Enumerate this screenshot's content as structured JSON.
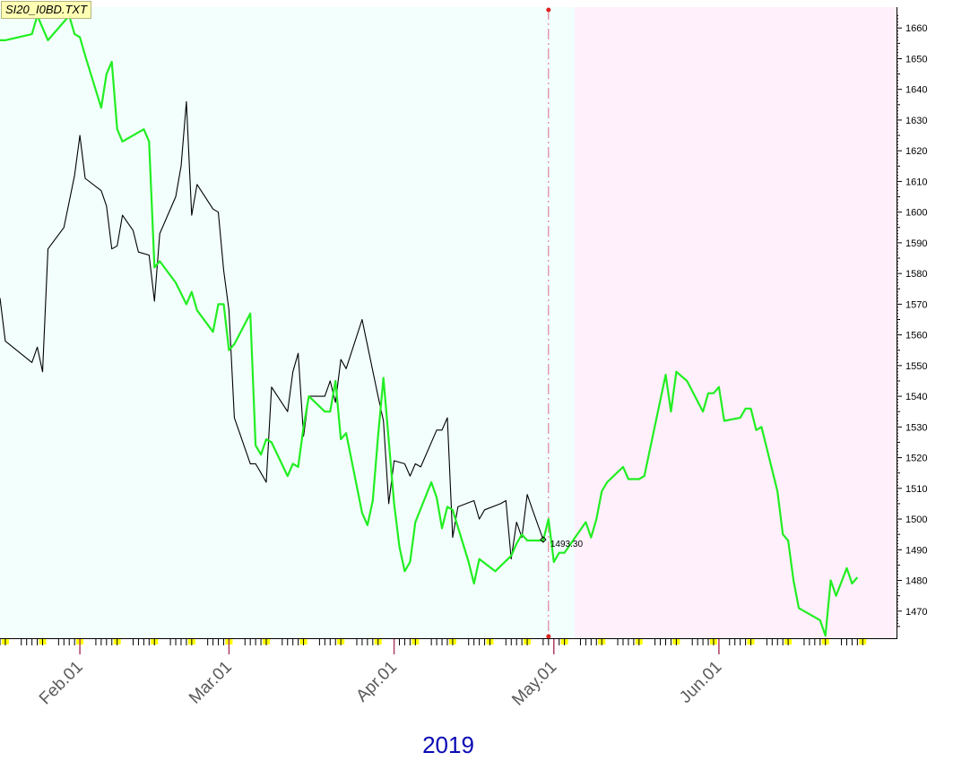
{
  "title": "SI20_I0BD.TXT",
  "colors": {
    "history_bg": "#f2fffd",
    "forecast_bg": "#fff0fb",
    "actual_line": "#000000",
    "forecast_line": "#22ee22",
    "divider": "#e06a8a",
    "divider_marker": "#dd2222",
    "year": "#0a0ab4",
    "month_tick": "#b04060",
    "week_marker": "#ffff00"
  },
  "chart_data": {
    "type": "line",
    "xlabel": "2019",
    "x_tick_labels": [
      "Feb.01",
      "Mar.01",
      "Apr.01",
      "May.01",
      "Jun.01"
    ],
    "y_ticks": [
      1470,
      1480,
      1490,
      1500,
      1510,
      1520,
      1530,
      1540,
      1550,
      1560,
      1570,
      1580,
      1590,
      1600,
      1610,
      1620,
      1630,
      1640,
      1650,
      1660
    ],
    "ylim": [
      1462,
      1664
    ],
    "xlim": [
      "2019-01-17",
      "2019-06-27"
    ],
    "divider_date": "2019-04-30",
    "last_value_label": "1493.30",
    "series": [
      {
        "role": "actual",
        "points": [
          [
            "2019-01-17",
            1572
          ],
          [
            "2019-01-18",
            1558
          ],
          [
            "2019-01-23",
            1551
          ],
          [
            "2019-01-24",
            1556
          ],
          [
            "2019-01-25",
            1548
          ],
          [
            "2019-01-26",
            1588
          ],
          [
            "2019-01-29",
            1595
          ],
          [
            "2019-01-31",
            1612
          ],
          [
            "2019-02-01",
            1625
          ],
          [
            "2019-02-02",
            1611
          ],
          [
            "2019-02-05",
            1607
          ],
          [
            "2019-02-06",
            1602
          ],
          [
            "2019-02-07",
            1588
          ],
          [
            "2019-02-08",
            1589
          ],
          [
            "2019-02-09",
            1599
          ],
          [
            "2019-02-11",
            1594
          ],
          [
            "2019-02-12",
            1587
          ],
          [
            "2019-02-14",
            1586
          ],
          [
            "2019-02-15",
            1571
          ],
          [
            "2019-02-16",
            1593
          ],
          [
            "2019-02-19",
            1605
          ],
          [
            "2019-02-20",
            1615
          ],
          [
            "2019-02-21",
            1636
          ],
          [
            "2019-02-22",
            1599
          ],
          [
            "2019-02-23",
            1609
          ],
          [
            "2019-02-26",
            1601
          ],
          [
            "2019-02-27",
            1600
          ],
          [
            "2019-02-28",
            1581
          ],
          [
            "2019-03-01",
            1568
          ],
          [
            "2019-03-02",
            1533
          ],
          [
            "2019-03-05",
            1518
          ],
          [
            "2019-03-06",
            1518
          ],
          [
            "2019-03-07",
            1515
          ],
          [
            "2019-03-08",
            1512
          ],
          [
            "2019-03-09",
            1543
          ],
          [
            "2019-03-12",
            1535
          ],
          [
            "2019-03-13",
            1548
          ],
          [
            "2019-03-14",
            1554
          ],
          [
            "2019-03-15",
            1527
          ],
          [
            "2019-03-16",
            1540
          ],
          [
            "2019-03-19",
            1540
          ],
          [
            "2019-03-20",
            1545
          ],
          [
            "2019-03-21",
            1538
          ],
          [
            "2019-03-22",
            1552
          ],
          [
            "2019-03-23",
            1549
          ],
          [
            "2019-03-26",
            1565
          ],
          [
            "2019-03-29",
            1540
          ],
          [
            "2019-03-30",
            1532
          ],
          [
            "2019-03-31",
            1505
          ],
          [
            "2019-04-01",
            1519
          ],
          [
            "2019-04-03",
            1518
          ],
          [
            "2019-04-04",
            1514
          ],
          [
            "2019-04-05",
            1518
          ],
          [
            "2019-04-06",
            1517
          ],
          [
            "2019-04-09",
            1529
          ],
          [
            "2019-04-10",
            1529
          ],
          [
            "2019-04-11",
            1533
          ],
          [
            "2019-04-12",
            1494
          ],
          [
            "2019-04-13",
            1504
          ],
          [
            "2019-04-16",
            1506
          ],
          [
            "2019-04-17",
            1500
          ],
          [
            "2019-04-18",
            1503
          ],
          [
            "2019-04-21",
            1505
          ],
          [
            "2019-04-22",
            1506
          ],
          [
            "2019-04-23",
            1487
          ],
          [
            "2019-04-24",
            1499
          ],
          [
            "2019-04-25",
            1494
          ],
          [
            "2019-04-26",
            1508
          ],
          [
            "2019-04-27",
            1503
          ],
          [
            "2019-04-29",
            1493.3
          ]
        ]
      },
      {
        "role": "forecast",
        "points": [
          [
            "2019-01-17",
            1656
          ],
          [
            "2019-01-18",
            1656
          ],
          [
            "2019-01-23",
            1658
          ],
          [
            "2019-01-24",
            1664
          ],
          [
            "2019-01-26",
            1656
          ],
          [
            "2019-01-30",
            1664
          ],
          [
            "2019-01-31",
            1658
          ],
          [
            "2019-02-01",
            1657
          ],
          [
            "2019-02-02",
            1651
          ],
          [
            "2019-02-05",
            1634
          ],
          [
            "2019-02-06",
            1645
          ],
          [
            "2019-02-07",
            1649
          ],
          [
            "2019-02-08",
            1627
          ],
          [
            "2019-02-09",
            1623
          ],
          [
            "2019-02-13",
            1627
          ],
          [
            "2019-02-14",
            1623
          ],
          [
            "2019-02-15",
            1582
          ],
          [
            "2019-02-16",
            1584
          ],
          [
            "2019-02-19",
            1577
          ],
          [
            "2019-02-21",
            1570
          ],
          [
            "2019-02-22",
            1574
          ],
          [
            "2019-02-23",
            1568
          ],
          [
            "2019-02-26",
            1561
          ],
          [
            "2019-02-27",
            1570
          ],
          [
            "2019-02-28",
            1570
          ],
          [
            "2019-03-01",
            1555
          ],
          [
            "2019-03-02",
            1557
          ],
          [
            "2019-03-05",
            1567
          ],
          [
            "2019-03-06",
            1524
          ],
          [
            "2019-03-07",
            1521
          ],
          [
            "2019-03-08",
            1526
          ],
          [
            "2019-03-09",
            1525
          ],
          [
            "2019-03-12",
            1514
          ],
          [
            "2019-03-13",
            1518
          ],
          [
            "2019-03-14",
            1517
          ],
          [
            "2019-03-15",
            1530
          ],
          [
            "2019-03-16",
            1540
          ],
          [
            "2019-03-19",
            1535
          ],
          [
            "2019-03-20",
            1535
          ],
          [
            "2019-03-21",
            1545
          ],
          [
            "2019-03-22",
            1526
          ],
          [
            "2019-03-23",
            1528
          ],
          [
            "2019-03-26",
            1502
          ],
          [
            "2019-03-27",
            1498
          ],
          [
            "2019-03-28",
            1506
          ],
          [
            "2019-03-29",
            1527
          ],
          [
            "2019-03-30",
            1546
          ],
          [
            "2019-04-01",
            1505
          ],
          [
            "2019-04-02",
            1491
          ],
          [
            "2019-04-03",
            1483
          ],
          [
            "2019-04-04",
            1486
          ],
          [
            "2019-04-05",
            1499
          ],
          [
            "2019-04-08",
            1512
          ],
          [
            "2019-04-09",
            1507
          ],
          [
            "2019-04-10",
            1497
          ],
          [
            "2019-04-11",
            1504
          ],
          [
            "2019-04-12",
            1503
          ],
          [
            "2019-04-15",
            1486
          ],
          [
            "2019-04-16",
            1479
          ],
          [
            "2019-04-17",
            1487
          ],
          [
            "2019-04-20",
            1483
          ],
          [
            "2019-04-23",
            1488
          ],
          [
            "2019-04-24",
            1492
          ],
          [
            "2019-04-25",
            1495
          ],
          [
            "2019-04-26",
            1493
          ],
          [
            "2019-04-29",
            1493
          ],
          [
            "2019-04-30",
            1500
          ],
          [
            "2019-05-01",
            1486
          ],
          [
            "2019-05-02",
            1489
          ],
          [
            "2019-05-03",
            1489
          ],
          [
            "2019-05-07",
            1499
          ],
          [
            "2019-05-08",
            1494
          ],
          [
            "2019-05-09",
            1500
          ],
          [
            "2019-05-10",
            1509
          ],
          [
            "2019-05-11",
            1512
          ],
          [
            "2019-05-14",
            1517
          ],
          [
            "2019-05-15",
            1513
          ],
          [
            "2019-05-17",
            1513
          ],
          [
            "2019-05-18",
            1514
          ],
          [
            "2019-05-22",
            1547
          ],
          [
            "2019-05-23",
            1535
          ],
          [
            "2019-05-24",
            1548
          ],
          [
            "2019-05-26",
            1545
          ],
          [
            "2019-05-29",
            1535
          ],
          [
            "2019-05-30",
            1541
          ],
          [
            "2019-05-31",
            1541
          ],
          [
            "2019-06-01",
            1543
          ],
          [
            "2019-06-02",
            1532
          ],
          [
            "2019-06-05",
            1533
          ],
          [
            "2019-06-06",
            1536
          ],
          [
            "2019-06-07",
            1536
          ],
          [
            "2019-06-08",
            1529
          ],
          [
            "2019-06-09",
            1530
          ],
          [
            "2019-06-12",
            1509
          ],
          [
            "2019-06-13",
            1495
          ],
          [
            "2019-06-14",
            1493
          ],
          [
            "2019-06-15",
            1480
          ],
          [
            "2019-06-16",
            1471
          ],
          [
            "2019-06-19",
            1468
          ],
          [
            "2019-06-20",
            1467
          ],
          [
            "2019-06-21",
            1462
          ],
          [
            "2019-06-22",
            1480
          ],
          [
            "2019-06-23",
            1475
          ],
          [
            "2019-06-25",
            1484
          ],
          [
            "2019-06-26",
            1479
          ],
          [
            "2019-06-27",
            1481
          ]
        ]
      }
    ]
  }
}
